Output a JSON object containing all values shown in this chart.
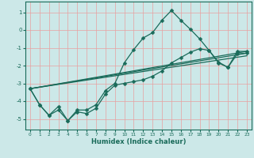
{
  "title": "",
  "xlabel": "Humidex (Indice chaleur)",
  "ylabel": "",
  "bg_color": "#cce8e8",
  "grid_color": "#e8a0a0",
  "line_color": "#1a6b5a",
  "marker": "D",
  "markersize": 2.5,
  "linewidth": 0.9,
  "xlim": [
    -0.5,
    23.5
  ],
  "ylim": [
    -5.6,
    1.6
  ],
  "yticks": [
    1,
    0,
    -1,
    -2,
    -3,
    -4,
    -5
  ],
  "xticks": [
    0,
    1,
    2,
    3,
    4,
    5,
    6,
    7,
    8,
    9,
    10,
    11,
    12,
    13,
    14,
    15,
    16,
    17,
    18,
    19,
    20,
    21,
    22,
    23
  ],
  "series": [
    {
      "x": [
        0,
        1,
        2,
        3,
        4,
        5,
        6,
        7,
        8,
        9,
        10,
        11,
        12,
        13,
        14,
        15,
        16,
        17,
        18,
        19,
        20,
        21,
        22,
        23
      ],
      "y": [
        -3.3,
        -4.2,
        -4.8,
        -4.3,
        -5.1,
        -4.5,
        -4.5,
        -4.2,
        -3.4,
        -3.0,
        -1.85,
        -1.1,
        -0.45,
        -0.15,
        0.55,
        1.1,
        0.55,
        0.05,
        -0.5,
        -1.15,
        -1.8,
        -2.1,
        -1.2,
        -1.2
      ],
      "with_markers": true
    },
    {
      "x": [
        0,
        1,
        2,
        3,
        4,
        5,
        6,
        7,
        8,
        9,
        10,
        11,
        12,
        13,
        14,
        15,
        16,
        17,
        18,
        19,
        20,
        21,
        22,
        23
      ],
      "y": [
        -3.3,
        -4.2,
        -4.8,
        -4.5,
        -5.1,
        -4.6,
        -4.7,
        -4.4,
        -3.6,
        -3.1,
        -3.0,
        -2.9,
        -2.8,
        -2.6,
        -2.3,
        -1.85,
        -1.55,
        -1.25,
        -1.05,
        -1.15,
        -1.85,
        -2.1,
        -1.35,
        -1.3
      ],
      "with_markers": true
    },
    {
      "x": [
        0,
        23
      ],
      "y": [
        -3.3,
        -1.2
      ],
      "with_markers": false
    },
    {
      "x": [
        0,
        23
      ],
      "y": [
        -3.3,
        -1.3
      ],
      "with_markers": false
    },
    {
      "x": [
        0,
        23
      ],
      "y": [
        -3.3,
        -1.45
      ],
      "with_markers": false
    }
  ]
}
